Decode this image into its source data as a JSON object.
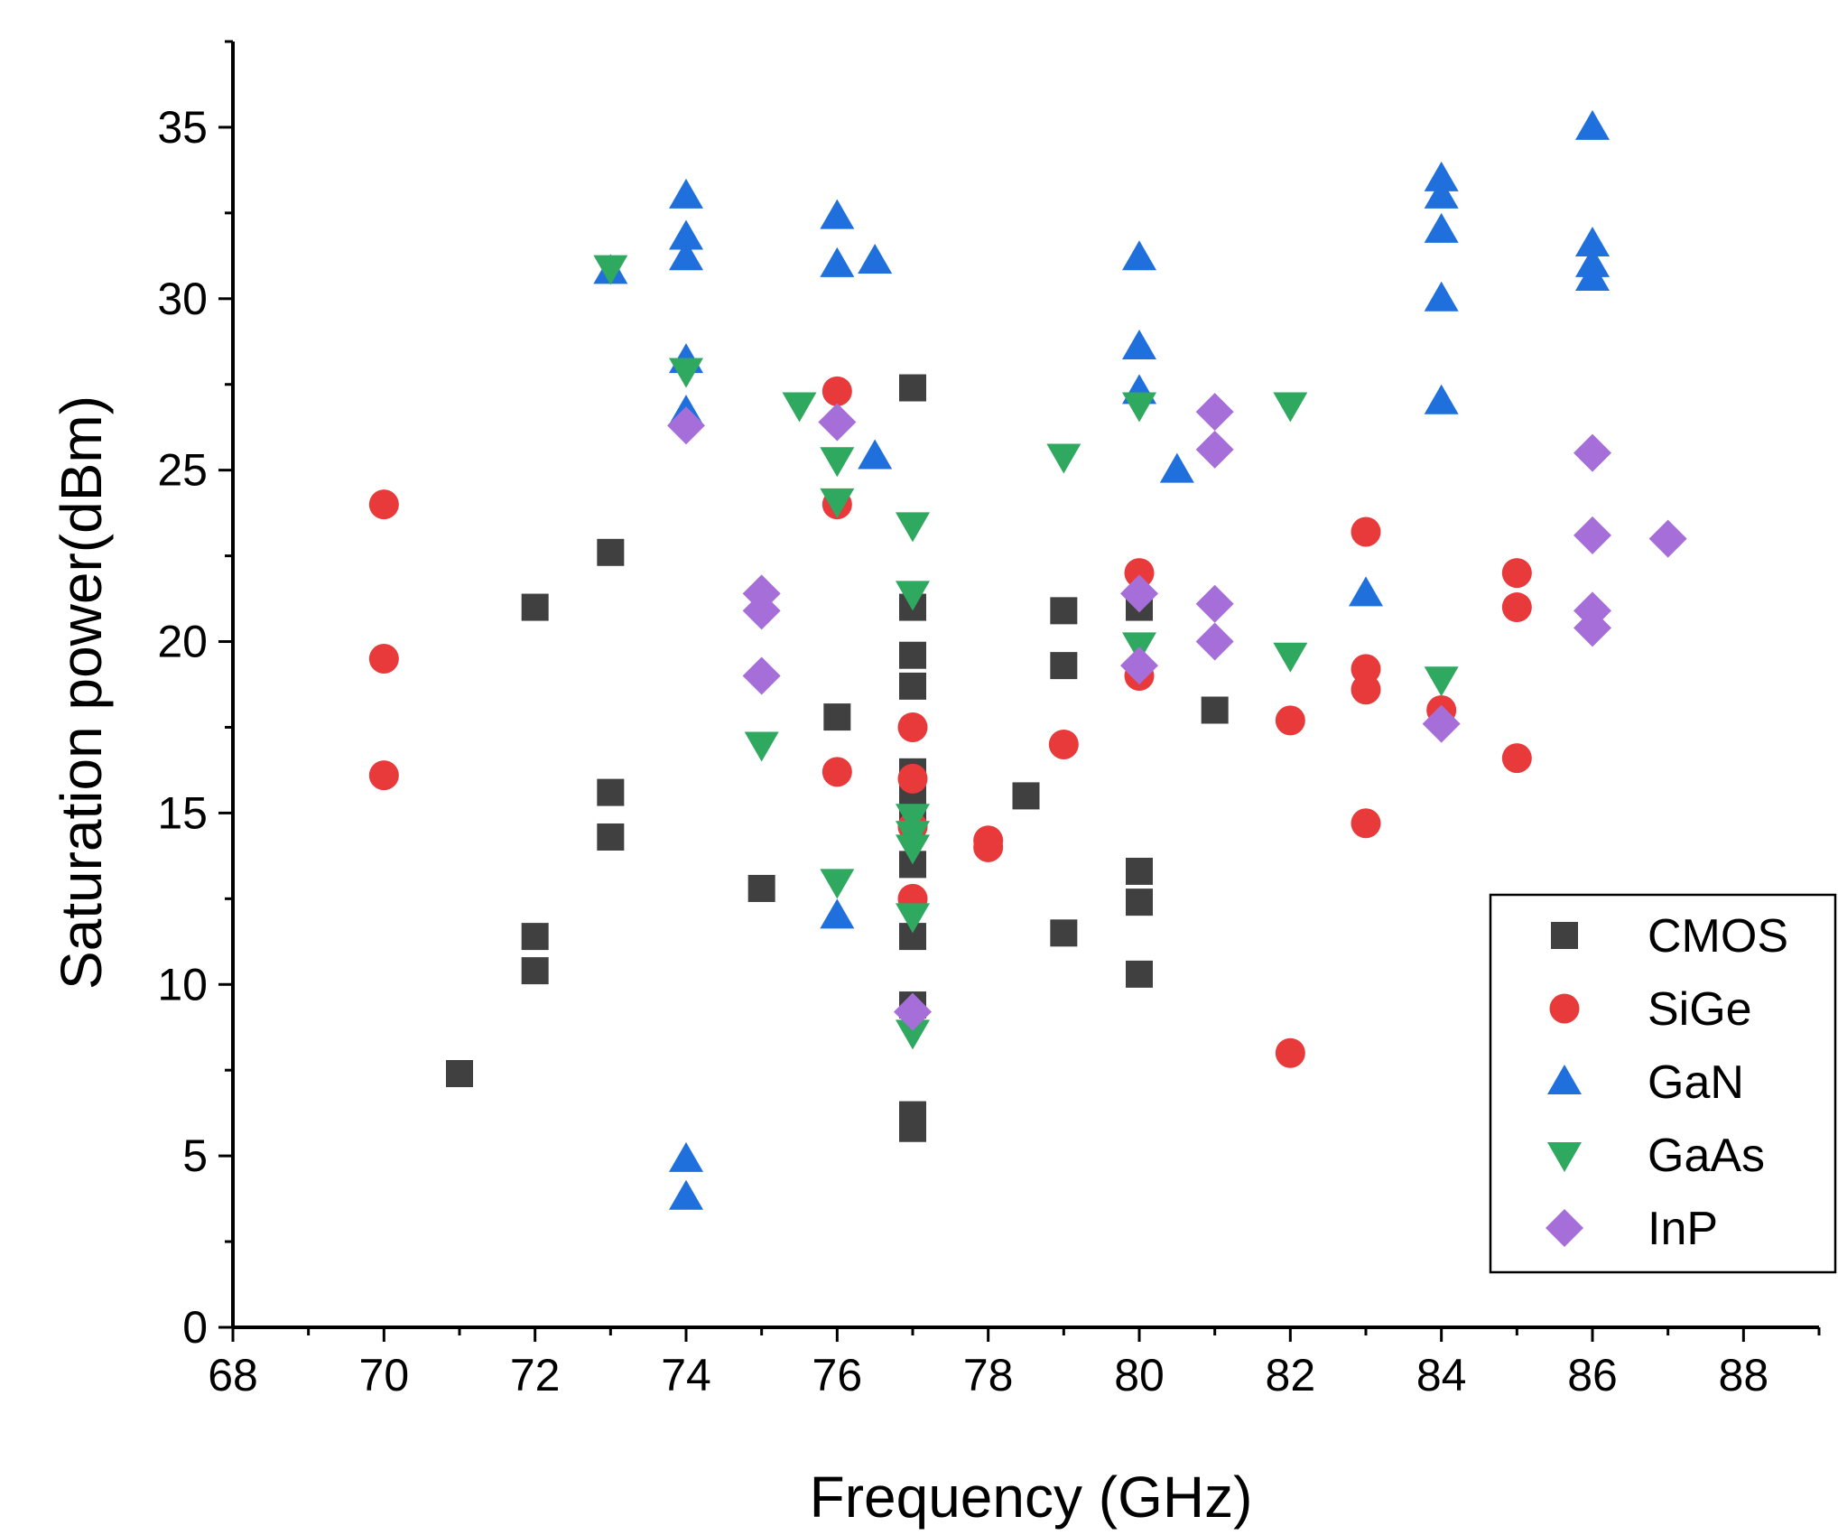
{
  "chart_data": {
    "type": "scatter",
    "title": "",
    "xlabel": "Frequency (GHz)",
    "ylabel": "Saturation power(dBm)",
    "xlim": [
      68,
      89
    ],
    "ylim": [
      0,
      37.5
    ],
    "xticks": [
      68,
      70,
      72,
      74,
      76,
      78,
      80,
      82,
      84,
      86,
      88
    ],
    "yticks": [
      0,
      5,
      10,
      15,
      20,
      25,
      30,
      35
    ],
    "grid": false,
    "legend_position": "bottom-right",
    "series": [
      {
        "name": "CMOS",
        "marker": "square",
        "color": "#404040",
        "points": [
          [
            71,
            7.4
          ],
          [
            72,
            21
          ],
          [
            72,
            11.4
          ],
          [
            72,
            10.4
          ],
          [
            73,
            22.6
          ],
          [
            73,
            15.6
          ],
          [
            73,
            14.3
          ],
          [
            75,
            12.8
          ],
          [
            76,
            17.8
          ],
          [
            77,
            27.4
          ],
          [
            77,
            21
          ],
          [
            77,
            19.6
          ],
          [
            77,
            18.7
          ],
          [
            77,
            16.2
          ],
          [
            77,
            15.4
          ],
          [
            77,
            14.9
          ],
          [
            77,
            13.5
          ],
          [
            77,
            11.4
          ],
          [
            77,
            9.4
          ],
          [
            77,
            6.2
          ],
          [
            77,
            5.8
          ],
          [
            78.5,
            15.5
          ],
          [
            79,
            20.9
          ],
          [
            79,
            19.3
          ],
          [
            79,
            11.5
          ],
          [
            80,
            21
          ],
          [
            80,
            13.3
          ],
          [
            80,
            12.4
          ],
          [
            80,
            10.3
          ],
          [
            81,
            18
          ]
        ]
      },
      {
        "name": "SiGe",
        "marker": "circle",
        "color": "#e83a3a",
        "points": [
          [
            70,
            24
          ],
          [
            70,
            19.5
          ],
          [
            70,
            16.1
          ],
          [
            76,
            27.3
          ],
          [
            76,
            24
          ],
          [
            76,
            16.2
          ],
          [
            77,
            17.5
          ],
          [
            77,
            16
          ],
          [
            77,
            14.6
          ],
          [
            77,
            12.5
          ],
          [
            78,
            14.2
          ],
          [
            78,
            14
          ],
          [
            79,
            17
          ],
          [
            80,
            22
          ],
          [
            80,
            19
          ],
          [
            82,
            17.7
          ],
          [
            82,
            8
          ],
          [
            83,
            23.2
          ],
          [
            83,
            19.2
          ],
          [
            83,
            18.6
          ],
          [
            83,
            14.7
          ],
          [
            84,
            18
          ],
          [
            85,
            22
          ],
          [
            85,
            21
          ],
          [
            85,
            16.6
          ]
        ]
      },
      {
        "name": "GaN",
        "marker": "triangle-up",
        "color": "#1f6fdd",
        "points": [
          [
            73,
            30.8
          ],
          [
            74,
            33
          ],
          [
            74,
            31.8
          ],
          [
            74,
            31.2
          ],
          [
            74,
            28.2
          ],
          [
            74,
            26.7
          ],
          [
            74,
            4.9
          ],
          [
            74,
            3.8
          ],
          [
            76,
            32.4
          ],
          [
            76,
            31
          ],
          [
            76,
            12
          ],
          [
            76.5,
            31.1
          ],
          [
            76.5,
            25.4
          ],
          [
            80,
            31.2
          ],
          [
            80,
            28.6
          ],
          [
            80,
            27.3
          ],
          [
            80.5,
            25
          ],
          [
            83,
            21.4
          ],
          [
            84,
            33.5
          ],
          [
            84,
            33
          ],
          [
            84,
            32
          ],
          [
            84,
            30
          ],
          [
            84,
            27
          ],
          [
            86,
            35
          ],
          [
            86,
            31.6
          ],
          [
            86,
            31
          ],
          [
            86,
            30.6
          ]
        ]
      },
      {
        "name": "GaAs",
        "marker": "triangle-down",
        "color": "#2fa860",
        "points": [
          [
            73,
            30.9
          ],
          [
            74,
            27.9
          ],
          [
            75,
            17
          ],
          [
            75.5,
            26.9
          ],
          [
            76,
            25.3
          ],
          [
            76,
            24.1
          ],
          [
            76,
            13
          ],
          [
            77,
            23.4
          ],
          [
            77,
            21.4
          ],
          [
            77,
            14.9
          ],
          [
            77,
            14.4
          ],
          [
            77,
            14
          ],
          [
            77,
            12
          ],
          [
            77,
            8.6
          ],
          [
            79,
            25.4
          ],
          [
            80,
            26.9
          ],
          [
            80,
            19.9
          ],
          [
            82,
            26.9
          ],
          [
            82,
            19.6
          ],
          [
            84,
            18.9
          ]
        ]
      },
      {
        "name": "InP",
        "marker": "diamond",
        "color": "#a66ed8",
        "points": [
          [
            74,
            26.3
          ],
          [
            75,
            21.4
          ],
          [
            75,
            20.9
          ],
          [
            75,
            19
          ],
          [
            76,
            26.4
          ],
          [
            77,
            9.2
          ],
          [
            80,
            21.4
          ],
          [
            80,
            19.3
          ],
          [
            81,
            26.7
          ],
          [
            81,
            25.6
          ],
          [
            81,
            21.1
          ],
          [
            81,
            20
          ],
          [
            84,
            17.6
          ],
          [
            86,
            25.5
          ],
          [
            86,
            23.1
          ],
          [
            86,
            20.9
          ],
          [
            86,
            20.4
          ],
          [
            87,
            23
          ]
        ]
      }
    ]
  }
}
